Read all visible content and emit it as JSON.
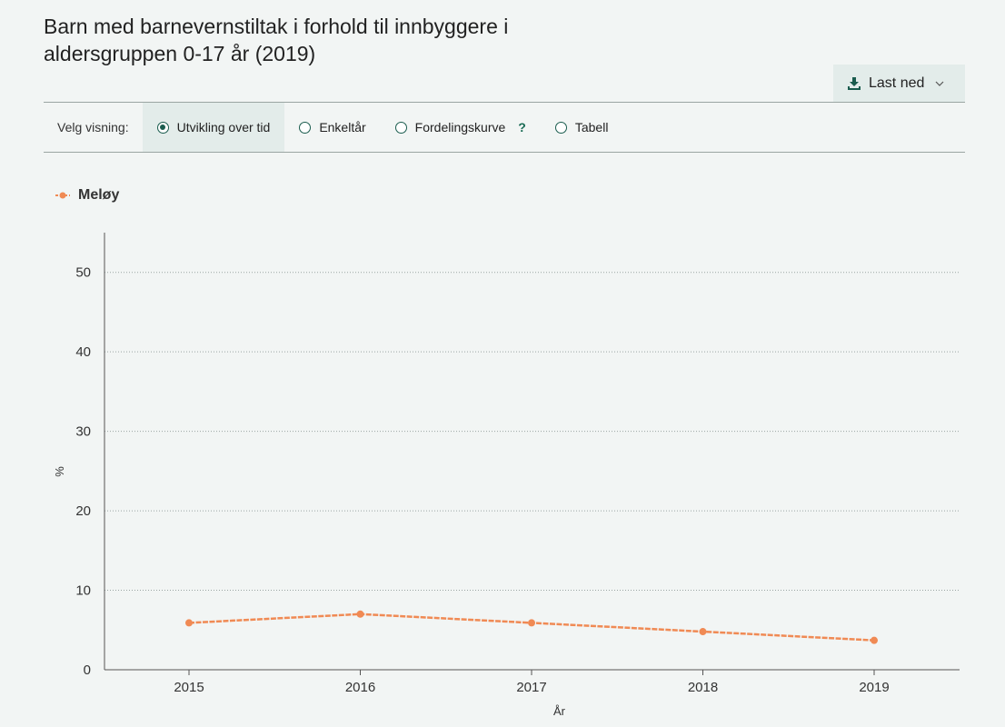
{
  "header": {
    "title": "Barn med barnevernstiltak i forhold til innbyggere i aldersgruppen 0-17 år (2019)",
    "download_label": "Last ned"
  },
  "view_selector": {
    "label": "Velg visning:",
    "options": [
      {
        "label": "Utvikling over tid",
        "selected": true
      },
      {
        "label": "Enkeltår",
        "selected": false
      },
      {
        "label": "Fordelingskurve",
        "selected": false
      },
      {
        "label": "Tabell",
        "selected": false
      }
    ],
    "help": "?"
  },
  "legend": {
    "label": "Meløy",
    "color": "#f08a54"
  },
  "chart_data": {
    "type": "line",
    "x": [
      "2015",
      "2016",
      "2017",
      "2018",
      "2019"
    ],
    "series": [
      {
        "name": "Meløy",
        "values": [
          5.9,
          7.0,
          5.9,
          4.8,
          3.7
        ],
        "color": "#f08a54"
      }
    ],
    "xlabel": "År",
    "ylabel": "%",
    "ylim": [
      0,
      55
    ],
    "yticks": [
      0,
      10,
      20,
      30,
      40,
      50
    ],
    "grid": true,
    "legend_position": "top-left"
  }
}
